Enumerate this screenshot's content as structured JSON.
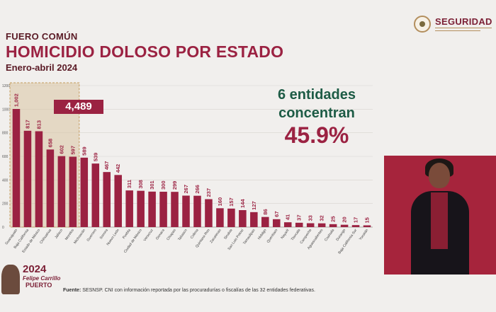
{
  "header": {
    "category": "FUERO COMÚN",
    "title": "HOMICIDIO DOLOSO POR ESTADO",
    "period": "Enero-abril 2024"
  },
  "logo": {
    "text": "SEGURIDAD",
    "icon": "national-seal-icon"
  },
  "annotation": {
    "line1": "6 entidades",
    "line2": "concentran",
    "percent": "45.9%"
  },
  "highlight": {
    "total": "4,489",
    "count": 6
  },
  "footer": {
    "logo_year": "2024",
    "logo_name": "Felipe Carrillo",
    "logo_place": "PUERTO",
    "source_label": "Fuente:",
    "source_text": "SESNSP. CNI con información reportada por las procuradurías o fiscalías de las 32 entidades federativas."
  },
  "colors": {
    "bar": "#9b2242",
    "highlight_fill": "#d9c4a3",
    "highlight_border": "#c49b5d",
    "title": "#9b2242",
    "annotation_green": "#1d5b45"
  },
  "chart_data": {
    "type": "bar",
    "title": "HOMICIDIO DOLOSO POR ESTADO",
    "xlabel": "",
    "ylabel": "",
    "ylim": [
      0,
      1200
    ],
    "yticks": [
      0,
      200,
      400,
      600,
      800,
      1000,
      1200
    ],
    "grid": true,
    "legend": "none",
    "categories": [
      "Guanajuato",
      "Baja California",
      "Estado de México",
      "Chihuahua",
      "Jalisco",
      "Morelos",
      "Michoacán",
      "Guerrero",
      "Sonora",
      "Nuevo León",
      "Puebla",
      "Ciudad de México",
      "Veracruz",
      "Oaxaca",
      "Chiapas",
      "Tabasco",
      "Colima",
      "Quintana Roo",
      "Zacatecas",
      "Sinaloa",
      "San Luis Potosí",
      "Tamaulipas",
      "Hidalgo",
      "Querétaro",
      "Nayarit",
      "Tlaxcala",
      "Campeche",
      "Aguascalientes",
      "Coahuila",
      "Durango",
      "Baja California Sur",
      "Yucatán"
    ],
    "values": [
      1002,
      817,
      813,
      658,
      602,
      597,
      589,
      539,
      467,
      442,
      311,
      308,
      301,
      300,
      299,
      267,
      266,
      237,
      160,
      157,
      144,
      127,
      86,
      67,
      41,
      37,
      33,
      32,
      25,
      20,
      17,
      15
    ]
  }
}
